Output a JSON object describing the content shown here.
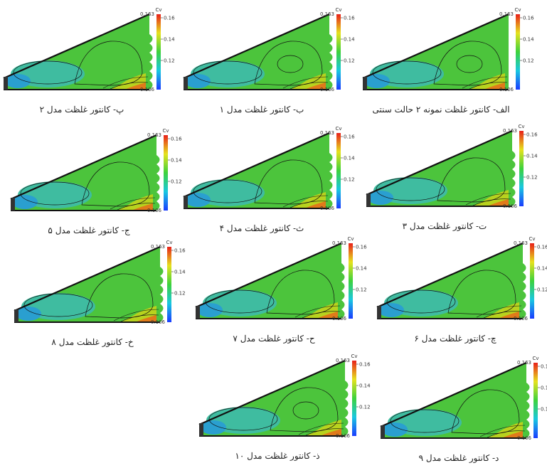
{
  "colorbar": {
    "title": "Cv",
    "max": "0.163",
    "min": "0.106",
    "ticks": [
      "0.16",
      "0.14",
      "0.12"
    ]
  },
  "panels": [
    {
      "caption": "الف- کانتور غلظت نمونه ۲ حالت سنتی"
    },
    {
      "caption": "ب- کانتور غلظت مدل ۱"
    },
    {
      "caption": "پ- کانتور غلظت مدل ۲"
    },
    {
      "caption": "ت- کانتور غلظت مدل ۳"
    },
    {
      "caption": "ث- کانتور غلظت مدل ۴"
    },
    {
      "caption": "ج- کانتور غلظت مدل ۵"
    },
    {
      "caption": "چ- کانتور غلظت مدل ۶"
    },
    {
      "caption": "ح- کانتور غلظت مدل ۷"
    },
    {
      "caption": "خ- کانتور غلظت مدل ۸"
    },
    {
      "caption": "د- کانتور غلظت مدل ۹"
    },
    {
      "caption": "ذ- کانتور غلظت مدل ۱۰"
    }
  ]
}
